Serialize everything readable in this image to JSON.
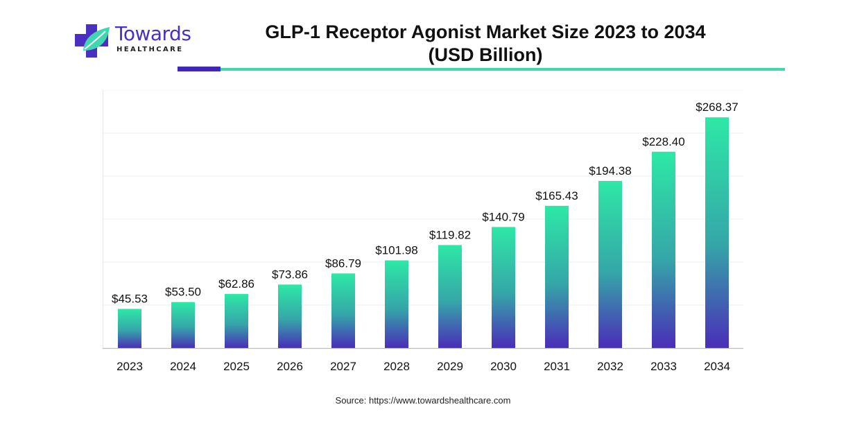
{
  "brand": {
    "name": "Towards",
    "subtitle": "HEALTHCARE",
    "colors": {
      "primary": "#4a2fc0",
      "accent": "#3fd6b0"
    },
    "icon": "medical-cross-leaf-icon"
  },
  "header": {
    "title_line1": "GLP-1 Receptor Agonist Market Size 2023 to 2034",
    "title_line2": "(USD Billion)"
  },
  "chart_data": {
    "type": "bar",
    "title": "GLP-1 Receptor Agonist Market Size 2023 to 2034 (USD Billion)",
    "categories": [
      "2023",
      "2024",
      "2025",
      "2026",
      "2027",
      "2028",
      "2029",
      "2030",
      "2031",
      "2032",
      "2033",
      "2034"
    ],
    "values": [
      45.53,
      53.5,
      62.86,
      73.86,
      86.79,
      101.98,
      119.82,
      140.79,
      165.43,
      194.38,
      228.4,
      268.37
    ],
    "data_labels": [
      "$45.53",
      "$53.50",
      "$62.86",
      "$73.86",
      "$86.79",
      "$101.98",
      "$119.82",
      "$140.79",
      "$165.43",
      "$194.38",
      "$228.40",
      "$268.37"
    ],
    "ylim": [
      0,
      300
    ],
    "grid": true,
    "bar_gradient": {
      "top": "#2ee8a6",
      "bottom": "#4a2db8"
    }
  },
  "footer": {
    "source": "Source: https://www.towardshealthcare.com"
  }
}
